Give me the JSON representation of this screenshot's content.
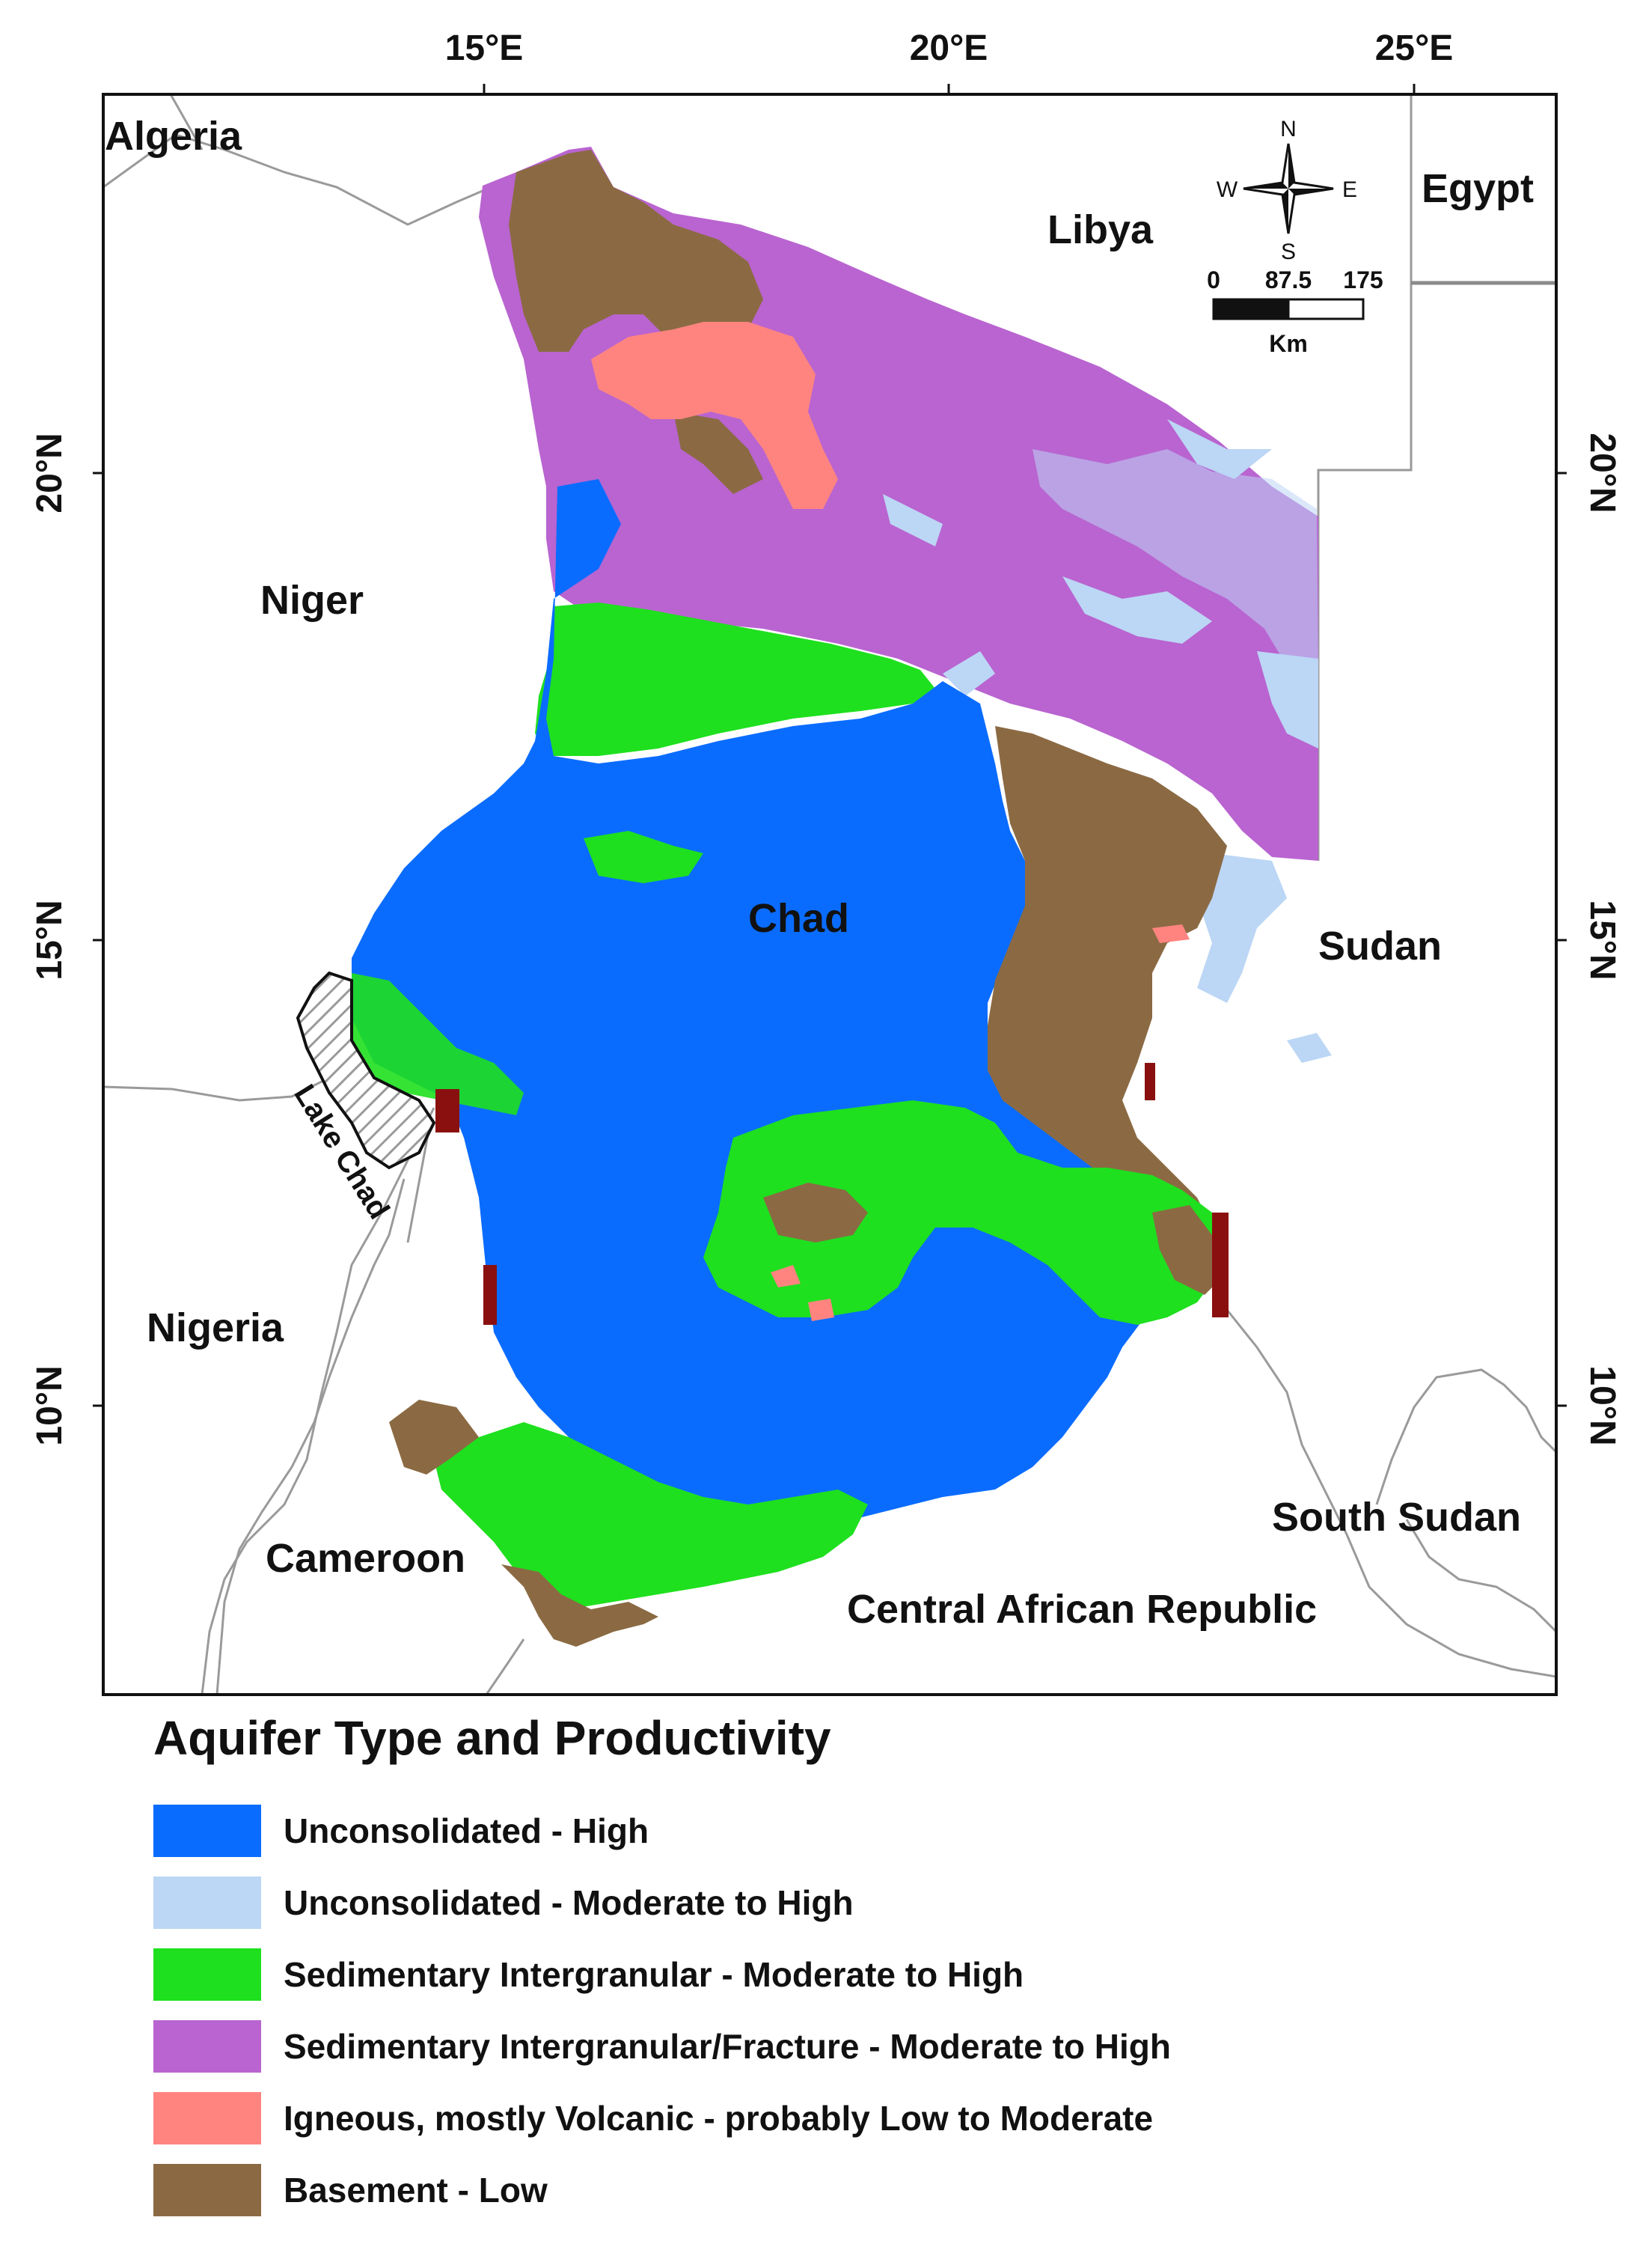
{
  "axes": {
    "longitude_labels": [
      "15°E",
      "20°E",
      "25°E"
    ],
    "latitude_labels": [
      "20°N",
      "15°N",
      "10°N"
    ]
  },
  "countries": {
    "algeria": "Algeria",
    "libya": "Libya",
    "egypt": "Egypt",
    "niger": "Niger",
    "chad": "Chad",
    "sudan": "Sudan",
    "nigeria": "Nigeria",
    "cameroon": "Cameroon",
    "south_sudan": "South Sudan",
    "car": "Central African Republic"
  },
  "lake_label": "Lake Chad",
  "compass": {
    "n": "N",
    "s": "S",
    "e": "E",
    "w": "W"
  },
  "scale_bar": {
    "ticks": [
      "0",
      "87.5",
      "175"
    ],
    "unit": "Km"
  },
  "legend": {
    "title": "Aquifer Type and Productivity",
    "items": [
      {
        "label": "Unconsolidated - High",
        "color": "#0a6cff"
      },
      {
        "label": "Unconsolidated - Moderate to High",
        "color": "#bcd6f5"
      },
      {
        "label": "Sedimentary Intergranular - Moderate to High",
        "color": "#1ee01e"
      },
      {
        "label": "Sedimentary Intergranular/Fracture - Moderate to High",
        "color": "#b964d0"
      },
      {
        "label": "Igneous, mostly Volcanic - probably Low to Moderate",
        "color": "#ff8480"
      },
      {
        "label": "Basement - Low",
        "color": "#8b6a43"
      }
    ]
  },
  "colors": {
    "unconsolidated_high": "#0a6cff",
    "unconsolidated_moderate": "#bcd6f5",
    "sedimentary_intergranular": "#1ee01e",
    "sedimentary_fracture": "#b964d0",
    "igneous": "#ff8480",
    "basement": "#8b6a43",
    "border": "#9a9a9a"
  }
}
